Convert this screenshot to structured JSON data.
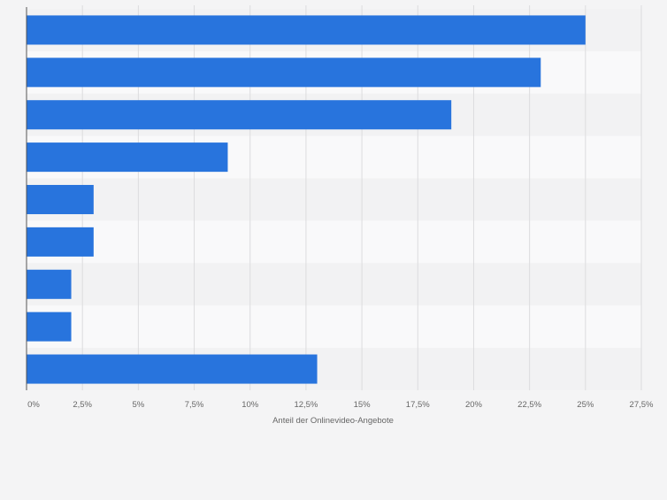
{
  "chart_data": {
    "type": "bar",
    "orientation": "horizontal",
    "categories": [
      "",
      "",
      "",
      "",
      "",
      "",
      "",
      "",
      ""
    ],
    "values": [
      25,
      23,
      19,
      9,
      3,
      3,
      2,
      2,
      13
    ],
    "xlabel": "Anteil der Onlinevideo-Angebote",
    "xlim": [
      0,
      27.5
    ],
    "xticks": [
      "0%",
      "2,5%",
      "5%",
      "7,5%",
      "10%",
      "12,5%",
      "15%",
      "17,5%",
      "20%",
      "22,5%",
      "25%",
      "27,5%"
    ],
    "grid": true,
    "bar_color": "#2874dd",
    "background_color": "#f4f4f5"
  }
}
